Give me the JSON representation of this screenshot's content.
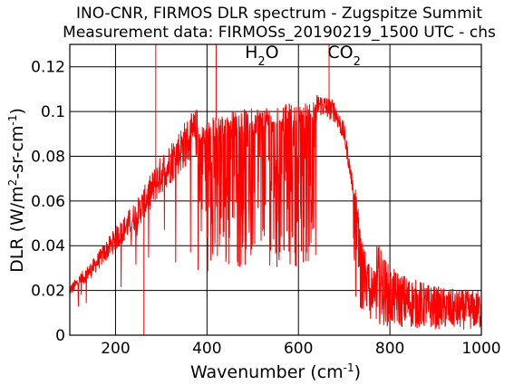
{
  "chart_data": {
    "type": "line",
    "title": "INO-CNR, FIRMOS DLR spectrum - Zugspitze Summit",
    "subtitle": "Measurement data: FIRMOSs_20190219_1500 UTC - chs",
    "xlabel_main": "Wavenumber (cm",
    "xlabel_sup": "-1",
    "xlabel_end": ")",
    "ylabel_main": "DLR (W/m",
    "ylabel_sup1": "2",
    "ylabel_mid": "-sr-cm",
    "ylabel_sup2": "-1",
    "ylabel_end": ")",
    "xlim": [
      100,
      1000
    ],
    "ylim": [
      0,
      0.13
    ],
    "xticks": [
      200,
      400,
      600,
      800,
      1000
    ],
    "xtick_labels": [
      "200",
      "400",
      "600",
      "800",
      "1000"
    ],
    "yticks": [
      0,
      0.02,
      0.04,
      0.06,
      0.08,
      0.1,
      0.12
    ],
    "ytick_labels": [
      "0",
      "0.02",
      "0.04",
      "0.06",
      "0.08",
      "0.1",
      "0.12"
    ],
    "grid": true,
    "line_color": "#ff0000",
    "annotations": [
      {
        "base": "H",
        "sub": "2",
        "tail": "O",
        "x": 520,
        "y": 0.124
      },
      {
        "base": "CO",
        "sub": "2",
        "tail": "",
        "x": 700,
        "y": 0.124
      }
    ],
    "series": [
      {
        "envelope_x": [
          100,
          150,
          200,
          250,
          300,
          350,
          400,
          450,
          500,
          550,
          600,
          650,
          680,
          700,
          720,
          750,
          800,
          850,
          900,
          950,
          1000
        ],
        "envelope_y": [
          0.02,
          0.03,
          0.043,
          0.055,
          0.072,
          0.085,
          0.095,
          0.098,
          0.1,
          0.101,
          0.102,
          0.103,
          0.1,
          0.09,
          0.065,
          0.03,
          0.018,
          0.015,
          0.013,
          0.012,
          0.012
        ]
      }
    ]
  }
}
